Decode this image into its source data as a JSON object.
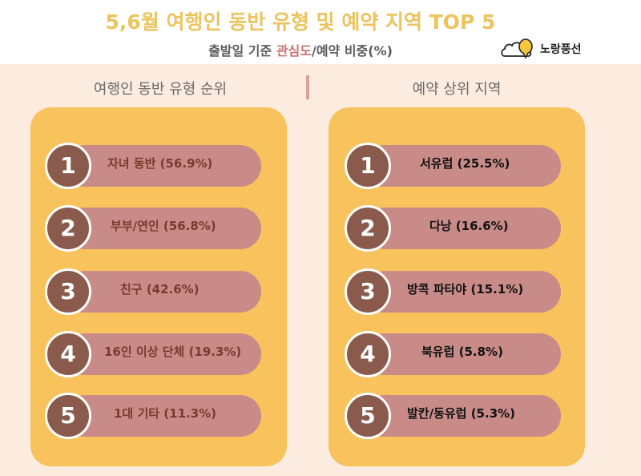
{
  "header": {
    "title": "5,6월 여행인 동반 유형 및 예약 지역 TOP 5",
    "subtitle_part1": "출발일 기준 ",
    "subtitle_accent": "관심도",
    "subtitle_part2": "/예약 비중",
    "subtitle_part3": "(%)",
    "logo_text": "노랑풍선"
  },
  "colors": {
    "title": "#ecc45e",
    "accent": "#c8706a",
    "card": "#f8c25c",
    "pill": "#c98b87",
    "circle": "#8a5b4d",
    "panel_bg": "#fcebdf"
  },
  "left_section": {
    "title": "여행인 동반 유형 순위",
    "items": [
      {
        "rank": "1",
        "label": "자녀 동반 (56.9%)"
      },
      {
        "rank": "2",
        "label": "부부/연인 (56.8%)"
      },
      {
        "rank": "3",
        "label": "친구 (42.6%)"
      },
      {
        "rank": "4",
        "label": "16인 이상 단체 (19.3%)"
      },
      {
        "rank": "5",
        "label": "1대 기타 (11.3%)"
      }
    ]
  },
  "right_section": {
    "title": "예약 상위 지역",
    "items": [
      {
        "rank": "1",
        "label": "서유럽 (25.5%)"
      },
      {
        "rank": "2",
        "label": "다낭 (16.6%)"
      },
      {
        "rank": "3",
        "label": "방콕 파타야 (15.1%)"
      },
      {
        "rank": "4",
        "label": "북유럽 (5.8%)"
      },
      {
        "rank": "5",
        "label": "발칸/동유럽 (5.3%)"
      }
    ]
  }
}
